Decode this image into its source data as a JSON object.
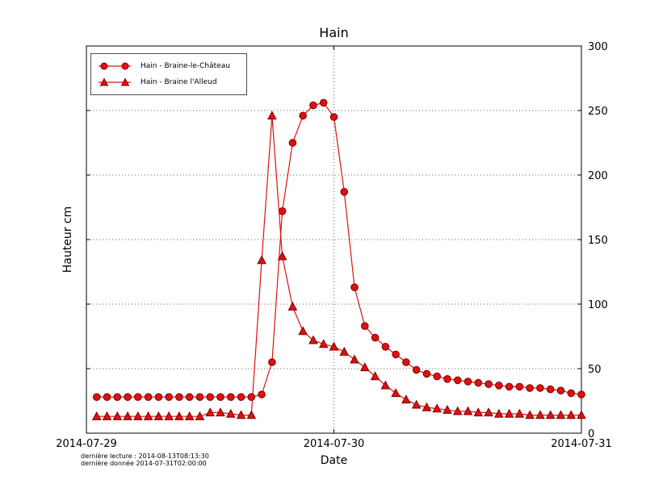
{
  "title": "Hain",
  "axes": {
    "xlabel": "Date",
    "ylabel": "Hauteur cm",
    "x_tick_labels": [
      "2014-07-29",
      "2014-07-30",
      "2014-07-31"
    ],
    "x_tick_hours": [
      0,
      24,
      48
    ],
    "y_ticks": [
      0,
      50,
      100,
      150,
      200,
      250,
      300
    ]
  },
  "legend": {
    "items": [
      {
        "label": "Hain - Braine-le-Château",
        "marker": "circle"
      },
      {
        "label": "Hain - Braine l'Alleud",
        "marker": "triangle"
      }
    ]
  },
  "footnotes": {
    "line1": "dernière lecture : 2014-08-13T08:13:30",
    "line2": "dernière donnée  2014-07-31T02:00:00"
  },
  "colors": {
    "series": "#dd1111",
    "marker_edge": "#7f0000",
    "grid": "#666666",
    "frame": "#000000"
  },
  "chart_data": {
    "type": "line",
    "title": "Hain",
    "xlabel": "Date",
    "ylabel": "Hauteur cm",
    "x_unit": "hours since 2014-07-29 00:00",
    "xlim": [
      0,
      48
    ],
    "ylim": [
      0,
      300
    ],
    "grid": "dotted horizontal at 50-cm steps, vertical at 2014-07-30",
    "legend_position": "upper left",
    "series": [
      {
        "name": "Hain - Braine-le-Château",
        "marker": "circle",
        "x": [
          1,
          2,
          3,
          4,
          5,
          6,
          7,
          8,
          9,
          10,
          11,
          12,
          13,
          14,
          15,
          16,
          17,
          18,
          19,
          20,
          21,
          22,
          23,
          24,
          25,
          26,
          27,
          28,
          29,
          30,
          31,
          32,
          33,
          34,
          35,
          36,
          37,
          38,
          39,
          40,
          41,
          42,
          43,
          44,
          45,
          46,
          47,
          48
        ],
        "y": [
          28,
          28,
          28,
          28,
          28,
          28,
          28,
          28,
          28,
          28,
          28,
          28,
          28,
          28,
          28,
          28,
          30,
          55,
          172,
          225,
          246,
          254,
          256,
          245,
          187,
          113,
          83,
          74,
          67,
          61,
          55,
          49,
          46,
          44,
          42,
          41,
          40,
          39,
          38,
          37,
          36,
          36,
          35,
          35,
          34,
          33,
          31,
          30
        ]
      },
      {
        "name": "Hain - Braine l'Alleud",
        "marker": "triangle",
        "x": [
          1,
          2,
          3,
          4,
          5,
          6,
          7,
          8,
          9,
          10,
          11,
          12,
          13,
          14,
          15,
          16,
          17,
          18,
          19,
          20,
          21,
          22,
          23,
          24,
          25,
          26,
          27,
          28,
          29,
          30,
          31,
          32,
          33,
          34,
          35,
          36,
          37,
          38,
          39,
          40,
          41,
          42,
          43,
          44,
          45,
          46,
          47,
          48
        ],
        "y": [
          13,
          13,
          13,
          13,
          13,
          13,
          13,
          13,
          13,
          13,
          13,
          16,
          16,
          15,
          14,
          14,
          134,
          246,
          137,
          98,
          79,
          72,
          69,
          67,
          63,
          57,
          51,
          44,
          37,
          31,
          26,
          22,
          20,
          19,
          18,
          17,
          17,
          16,
          16,
          15,
          15,
          15,
          14,
          14,
          14,
          14,
          14,
          14
        ]
      }
    ]
  }
}
